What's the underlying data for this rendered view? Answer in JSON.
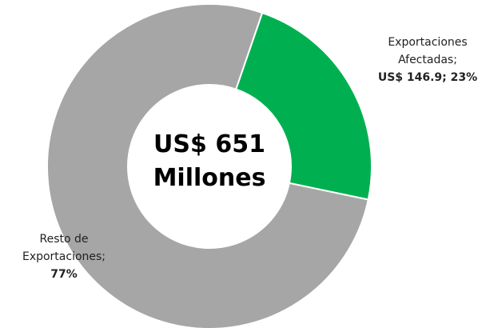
{
  "chart_data": {
    "type": "donut",
    "center_label": "US$ 651 Millones",
    "categories": [
      "Exportaciones Afectadas;",
      "Resto de Exportaciones;"
    ],
    "values": [
      23,
      77
    ],
    "value_labels": [
      "US$ 146.9; 23%",
      "77%"
    ],
    "colors": [
      "#00b050",
      "#a6a6a6"
    ]
  }
}
